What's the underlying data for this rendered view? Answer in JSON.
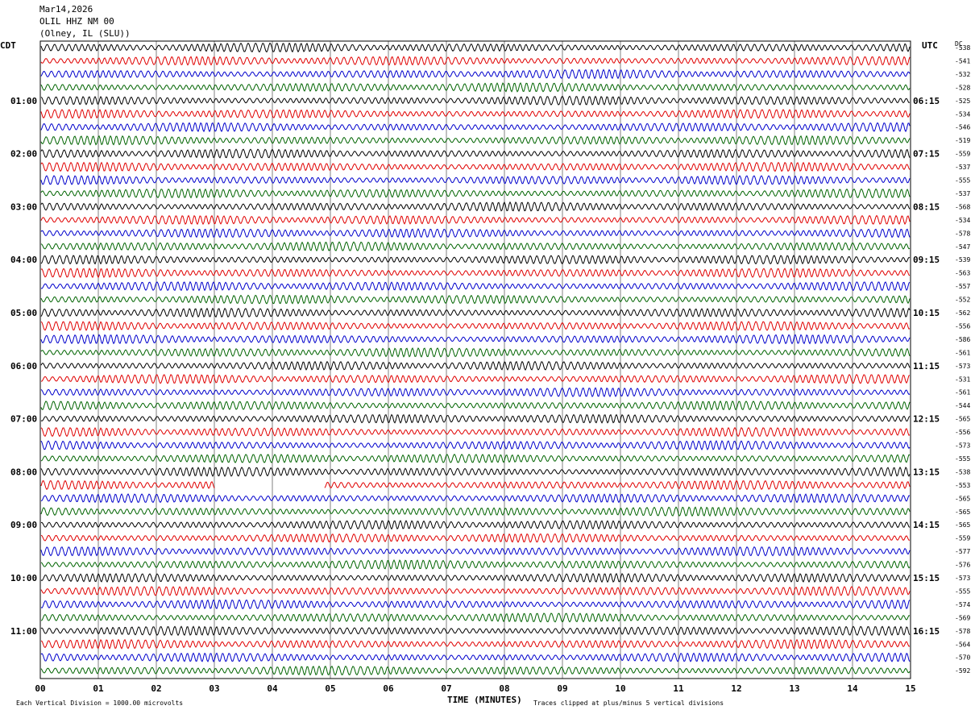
{
  "header": {
    "date": "Mar14,2026",
    "station": "OLIL HHZ NM 00",
    "location": "(Olney, IL (SLU))"
  },
  "left_axis_title": "CDT",
  "right_axis_title": "UTC",
  "dc_label": "DC",
  "x_axis_title": "TIME (MINUTES)",
  "footer_left": "Each Vertical Division = 1000.00 microvolts",
  "footer_right": "Traces clipped at plus/minus 5 vertical divisions",
  "chart_data": {
    "type": "line",
    "xlim": [
      0,
      15
    ],
    "x_ticks": [
      "00",
      "01",
      "02",
      "03",
      "04",
      "05",
      "06",
      "07",
      "08",
      "09",
      "10",
      "11",
      "12",
      "13",
      "14",
      "15"
    ],
    "left_hour_labels": [
      "01:00",
      "02:00",
      "03:00",
      "04:00",
      "05:00",
      "06:00",
      "07:00",
      "08:00",
      "09:00",
      "10:00",
      "11:00"
    ],
    "right_hour_labels": [
      "06:15",
      "07:15",
      "08:15",
      "09:15",
      "10:15",
      "11:15",
      "12:15",
      "13:15",
      "14:15",
      "15:15",
      "16:15"
    ],
    "trace_colors": [
      "#000000",
      "#e00000",
      "#0000cc",
      "#006400"
    ],
    "dc_offsets": [
      "-538",
      "-541",
      "-532",
      "-528",
      "-525",
      "-534",
      "-546",
      "-519",
      "-559",
      "-537",
      "-555",
      "-537",
      "-568",
      "-534",
      "-578",
      "-547",
      "-539",
      "-563",
      "-557",
      "-552",
      "-562",
      "-556",
      "-586",
      "-561",
      "-573",
      "-531",
      "-561",
      "-544",
      "-565",
      "-556",
      "-573",
      "-555",
      "-538",
      "-553",
      "-565",
      "-565",
      "-565",
      "-559",
      "-577",
      "-576",
      "-573",
      "-555",
      "-574",
      "-569",
      "-578",
      "-564",
      "-570",
      "-592"
    ]
  }
}
